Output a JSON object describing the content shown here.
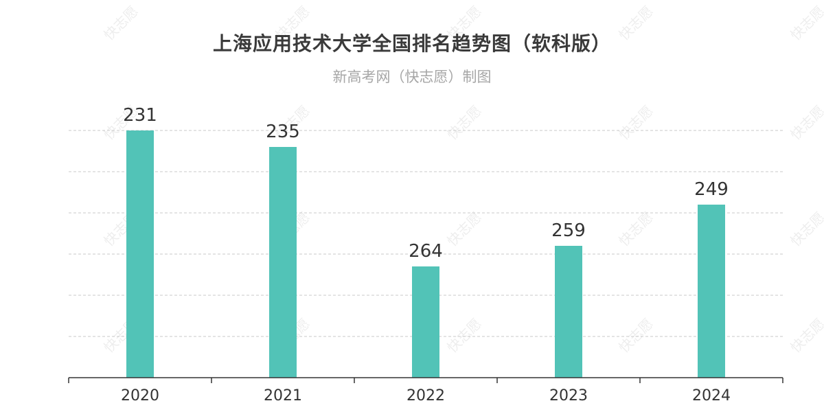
{
  "header": {
    "title": "上海应用技术大学全国排名趋势图（软科版）",
    "subtitle": "新高考网（快志愿）制图"
  },
  "watermark": {
    "text": "快志愿"
  },
  "colors": {
    "bar": "#52c3b7",
    "grid": "#c8c8c8",
    "axis": "#333333",
    "label": "#333333"
  },
  "chart_data": {
    "type": "bar",
    "categories": [
      "2020",
      "2021",
      "2022",
      "2023",
      "2024"
    ],
    "series": [
      {
        "values": [
          231,
          235,
          264,
          259,
          249
        ]
      }
    ],
    "title": "上海应用技术大学全国排名趋势图（软科版）",
    "subtitle": "新高考网（快志愿）制图",
    "xlabel": "",
    "ylabel": "",
    "y_axis_inverted": true,
    "ylim": [
      231,
      291
    ],
    "grid": "horizontal-dashed",
    "legend": "none"
  }
}
